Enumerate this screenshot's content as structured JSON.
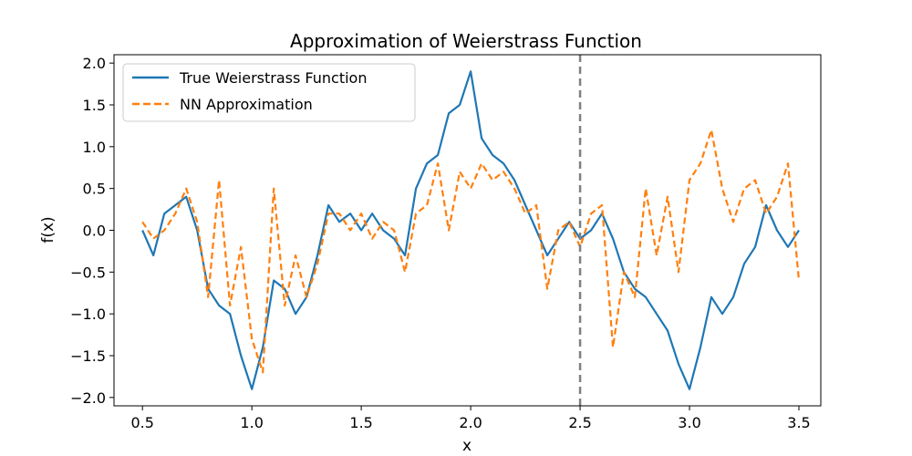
{
  "chart_data": {
    "type": "line",
    "title": "Approximation of Weierstrass Function",
    "xlabel": "x",
    "ylabel": "f(x)",
    "xlim": [
      0.37,
      3.6
    ],
    "ylim": [
      -2.1,
      2.1
    ],
    "xticks": [
      0.5,
      1.0,
      1.5,
      2.0,
      2.5,
      3.0,
      3.5
    ],
    "xtick_labels": [
      "0.5",
      "1.0",
      "1.5",
      "2.0",
      "2.5",
      "3.0",
      "3.5"
    ],
    "yticks": [
      -2.0,
      -1.5,
      -1.0,
      -0.5,
      0.0,
      0.5,
      1.0,
      1.5,
      2.0
    ],
    "ytick_labels": [
      "−2.0",
      "−1.5",
      "−1.0",
      "−0.5",
      "0.0",
      "0.5",
      "1.0",
      "1.5",
      "2.0"
    ],
    "grid": false,
    "legend_position": "upper-left",
    "vline": {
      "x": 2.5,
      "color": "#808080",
      "style": "dashed"
    },
    "series": [
      {
        "name": "True Weierstrass Function",
        "color": "#1f77b4",
        "style": "solid",
        "x": [
          0.5,
          0.55,
          0.6,
          0.65,
          0.7,
          0.75,
          0.8,
          0.85,
          0.9,
          0.95,
          1.0,
          1.05,
          1.1,
          1.15,
          1.2,
          1.25,
          1.3,
          1.35,
          1.4,
          1.45,
          1.5,
          1.55,
          1.6,
          1.65,
          1.7,
          1.75,
          1.8,
          1.85,
          1.9,
          1.95,
          2.0,
          2.05,
          2.1,
          2.15,
          2.2,
          2.25,
          2.3,
          2.35,
          2.4,
          2.45,
          2.5,
          2.55,
          2.6,
          2.65,
          2.7,
          2.75,
          2.8,
          2.85,
          2.9,
          2.95,
          3.0,
          3.05,
          3.1,
          3.15,
          3.2,
          3.25,
          3.3,
          3.35,
          3.4,
          3.45,
          3.5
        ],
        "y": [
          0.0,
          -0.3,
          0.2,
          0.3,
          0.4,
          0.0,
          -0.7,
          -0.9,
          -1.0,
          -1.5,
          -1.9,
          -1.4,
          -0.6,
          -0.7,
          -1.0,
          -0.8,
          -0.3,
          0.3,
          0.1,
          0.2,
          0.0,
          0.2,
          0.0,
          -0.1,
          -0.3,
          0.5,
          0.8,
          0.9,
          1.4,
          1.5,
          1.9,
          1.1,
          0.9,
          0.8,
          0.6,
          0.3,
          0.0,
          -0.3,
          -0.1,
          0.1,
          -0.1,
          0.0,
          0.2,
          -0.1,
          -0.5,
          -0.7,
          -0.8,
          -1.0,
          -1.2,
          -1.6,
          -1.9,
          -1.4,
          -0.8,
          -1.0,
          -0.8,
          -0.4,
          -0.2,
          0.3,
          0.0,
          -0.2,
          0.0
        ]
      },
      {
        "name": "NN Approximation",
        "color": "#ff7f0e",
        "style": "dashed",
        "x": [
          0.5,
          0.55,
          0.6,
          0.65,
          0.7,
          0.75,
          0.8,
          0.85,
          0.9,
          0.95,
          1.0,
          1.05,
          1.1,
          1.15,
          1.2,
          1.25,
          1.3,
          1.35,
          1.4,
          1.45,
          1.5,
          1.55,
          1.6,
          1.65,
          1.7,
          1.75,
          1.8,
          1.85,
          1.9,
          1.95,
          2.0,
          2.05,
          2.1,
          2.15,
          2.2,
          2.25,
          2.3,
          2.35,
          2.4,
          2.45,
          2.5,
          2.55,
          2.6,
          2.65,
          2.7,
          2.75,
          2.8,
          2.85,
          2.9,
          2.95,
          3.0,
          3.05,
          3.1,
          3.15,
          3.2,
          3.25,
          3.3,
          3.35,
          3.4,
          3.45,
          3.5
        ],
        "y": [
          0.1,
          -0.1,
          0.0,
          0.2,
          0.5,
          0.1,
          -0.8,
          0.6,
          -0.9,
          -0.2,
          -1.3,
          -1.7,
          0.5,
          -0.9,
          -0.3,
          -0.8,
          -0.4,
          0.2,
          0.2,
          0.0,
          0.2,
          -0.1,
          0.1,
          0.0,
          -0.5,
          0.2,
          0.3,
          0.8,
          0.0,
          0.7,
          0.5,
          0.8,
          0.6,
          0.7,
          0.5,
          0.2,
          0.3,
          -0.7,
          0.0,
          0.1,
          -0.2,
          0.2,
          0.3,
          -1.4,
          -0.5,
          -0.8,
          0.5,
          -0.3,
          0.4,
          -0.5,
          0.6,
          0.8,
          1.2,
          0.5,
          0.1,
          0.5,
          0.6,
          0.2,
          0.4,
          0.8,
          -0.6
        ]
      }
    ]
  }
}
